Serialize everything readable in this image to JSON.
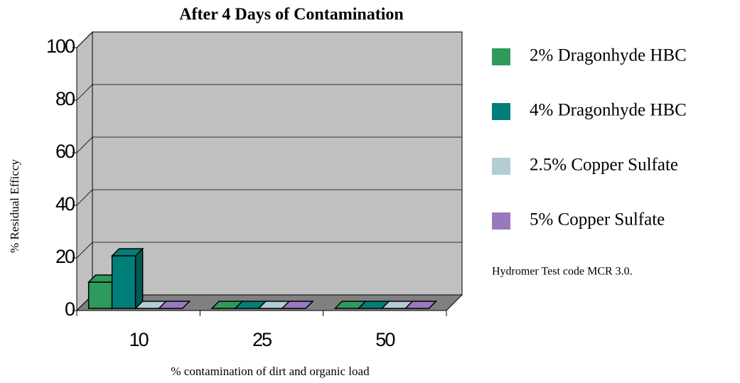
{
  "chart_data": {
    "type": "bar3d",
    "title": "After 4 Days of Contamination",
    "xlabel": "% contamination of dirt and organic load",
    "ylabel": "% Residual Efficcy",
    "annotation": "Hydromer Test code MCR 3.0.",
    "categories": [
      "10",
      "25",
      "50"
    ],
    "series": [
      {
        "name": "2% Dragonhyde HBC",
        "color": "#2e9a5c",
        "values": [
          10,
          0,
          0
        ]
      },
      {
        "name": "4% Dragonhyde HBC",
        "color": "#007f7a",
        "values": [
          20,
          0,
          0
        ]
      },
      {
        "name": "2.5% Copper Sulfate",
        "color": "#b4ccd4",
        "values": [
          0,
          0,
          0
        ]
      },
      {
        "name": "5% Copper Sulfate",
        "color": "#9a78c0",
        "values": [
          0,
          0,
          0
        ]
      }
    ],
    "ylim": [
      0,
      100
    ],
    "yticks": [
      0,
      20,
      40,
      60,
      80,
      100
    ],
    "grid": true
  }
}
